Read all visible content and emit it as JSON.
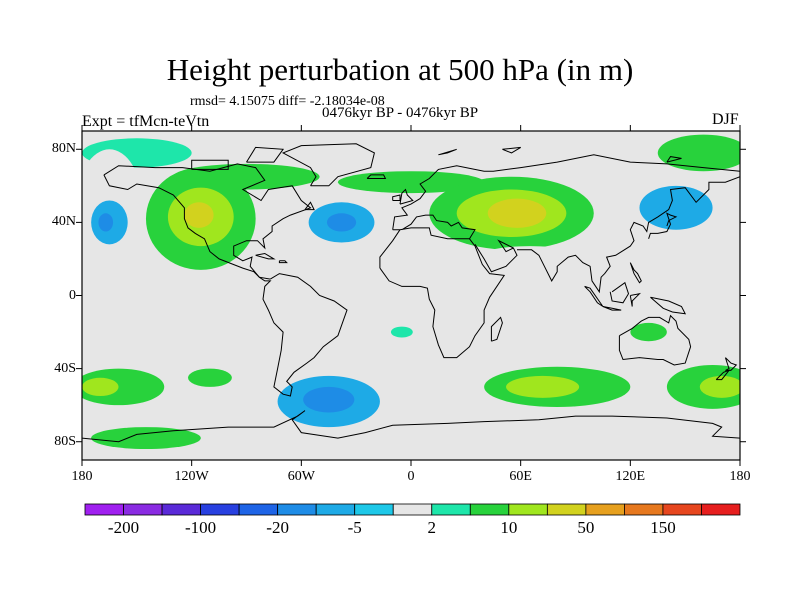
{
  "title": "Height perturbation at 500 hPa (in m)",
  "stats_line": "rmsd= 4.15075 diff= -2.18034e-08",
  "period_line": "0476kyr BP - 0476kyr BP",
  "expt_label": "Expt = tfMcn-teVtn",
  "season_label": "DJF",
  "map": {
    "projection": "cylindrical equidistant",
    "lon_range": [
      -180,
      180
    ],
    "lat_range": [
      -90,
      90
    ],
    "lat_ticks": [
      {
        "value": 80,
        "label": "80N"
      },
      {
        "value": 40,
        "label": "40N"
      },
      {
        "value": 0,
        "label": "0"
      },
      {
        "value": -40,
        "label": "40S"
      },
      {
        "value": -80,
        "label": "80S"
      }
    ],
    "lon_ticks": [
      {
        "value": -180,
        "label": "180"
      },
      {
        "value": -120,
        "label": "120W"
      },
      {
        "value": -60,
        "label": "60W"
      },
      {
        "value": 0,
        "label": "0"
      },
      {
        "value": 60,
        "label": "60E"
      },
      {
        "value": 120,
        "label": "120E"
      },
      {
        "value": 180,
        "label": "180"
      }
    ],
    "background_level_color": "#e6e6e6"
  },
  "colorbar": {
    "colors": [
      "#a020f0",
      "#8a2be2",
      "#5a2ad8",
      "#2840e0",
      "#1e64e6",
      "#1e8ce6",
      "#1eaae6",
      "#1ec8e8",
      "#e6e6e6",
      "#1ee6aa",
      "#28d23c",
      "#a0e61e",
      "#d2d21e",
      "#e6a01e",
      "#e6781e",
      "#e6461e",
      "#e61e1e"
    ],
    "label_boundaries": [
      {
        "index": 1,
        "label": "-200"
      },
      {
        "index": 3,
        "label": "-100"
      },
      {
        "index": 5,
        "label": "-20"
      },
      {
        "index": 7,
        "label": "-5"
      },
      {
        "index": 9,
        "label": "2"
      },
      {
        "index": 11,
        "label": "10"
      },
      {
        "index": 13,
        "label": "50"
      },
      {
        "index": 15,
        "label": "150"
      }
    ]
  },
  "anomaly_regions": [
    {
      "level": 9,
      "lon": -150,
      "lat": 78,
      "rlon": 30,
      "rlat": 8
    },
    {
      "level": 8,
      "lon": -165,
      "lat": 50,
      "rlon": 18,
      "rlat": 30
    },
    {
      "level": 6,
      "lon": -165,
      "lat": 40,
      "rlon": 10,
      "rlat": 12
    },
    {
      "level": 5,
      "lon": -167,
      "lat": 40,
      "rlon": 4,
      "rlat": 5
    },
    {
      "level": 10,
      "lon": -115,
      "lat": 42,
      "rlon": 30,
      "rlat": 28
    },
    {
      "level": 11,
      "lon": -115,
      "lat": 43,
      "rlon": 18,
      "rlat": 16
    },
    {
      "level": 12,
      "lon": -116,
      "lat": 44,
      "rlon": 8,
      "rlat": 7
    },
    {
      "level": 8,
      "lon": -40,
      "lat": 40,
      "rlon": 30,
      "rlat": 20
    },
    {
      "level": 6,
      "lon": -38,
      "lat": 40,
      "rlon": 18,
      "rlat": 11
    },
    {
      "level": 5,
      "lon": -38,
      "lat": 40,
      "rlon": 8,
      "rlat": 5
    },
    {
      "level": 8,
      "lon": -25,
      "lat": 82,
      "rlon": 60,
      "rlat": 7
    },
    {
      "level": 8,
      "lon": 40,
      "lat": 72,
      "rlon": 28,
      "rlat": 9
    },
    {
      "level": 10,
      "lon": -90,
      "lat": 65,
      "rlon": 40,
      "rlat": 7
    },
    {
      "level": 10,
      "lon": 0,
      "lat": 62,
      "rlon": 40,
      "rlat": 6
    },
    {
      "level": 10,
      "lon": 55,
      "lat": 45,
      "rlon": 45,
      "rlat": 20
    },
    {
      "level": 11,
      "lon": 55,
      "lat": 45,
      "rlon": 30,
      "rlat": 13
    },
    {
      "level": 12,
      "lon": 58,
      "lat": 45,
      "rlon": 16,
      "rlat": 8
    },
    {
      "level": 8,
      "lon": 140,
      "lat": 52,
      "rlon": 40,
      "rlat": 28
    },
    {
      "level": 6,
      "lon": 145,
      "lat": 48,
      "rlon": 20,
      "rlat": 12
    },
    {
      "level": 10,
      "lon": 160,
      "lat": 78,
      "rlon": 25,
      "rlat": 10
    },
    {
      "level": 8,
      "lon": 65,
      "lat": 20,
      "rlon": 30,
      "rlat": 7
    },
    {
      "level": 8,
      "lon": -40,
      "lat": -58,
      "rlon": 45,
      "rlat": 22
    },
    {
      "level": 6,
      "lon": -45,
      "lat": -58,
      "rlon": 28,
      "rlat": 14
    },
    {
      "level": 5,
      "lon": -45,
      "lat": -57,
      "rlon": 14,
      "rlat": 7
    },
    {
      "level": 8,
      "lon": 10,
      "lat": -78,
      "rlon": 40,
      "rlat": 6
    },
    {
      "level": 8,
      "lon": 55,
      "lat": -30,
      "rlon": 25,
      "rlat": 8
    },
    {
      "level": 8,
      "lon": 140,
      "lat": -72,
      "rlon": 40,
      "rlat": 7
    },
    {
      "level": 10,
      "lon": -160,
      "lat": -50,
      "rlon": 25,
      "rlat": 10
    },
    {
      "level": 11,
      "lon": -170,
      "lat": -50,
      "rlon": 10,
      "rlat": 5
    },
    {
      "level": 10,
      "lon": -110,
      "lat": -45,
      "rlon": 12,
      "rlat": 5
    },
    {
      "level": 10,
      "lon": 80,
      "lat": -50,
      "rlon": 40,
      "rlat": 11
    },
    {
      "level": 11,
      "lon": 72,
      "lat": -50,
      "rlon": 20,
      "rlat": 6
    },
    {
      "level": 10,
      "lon": 165,
      "lat": -50,
      "rlon": 25,
      "rlat": 12
    },
    {
      "level": 11,
      "lon": 170,
      "lat": -50,
      "rlon": 12,
      "rlat": 6
    },
    {
      "level": 10,
      "lon": -145,
      "lat": -78,
      "rlon": 30,
      "rlat": 6
    },
    {
      "level": 10,
      "lon": 130,
      "lat": -20,
      "rlon": 10,
      "rlat": 5
    },
    {
      "level": 9,
      "lon": -5,
      "lat": -20,
      "rlon": 6,
      "rlat": 3
    }
  ]
}
